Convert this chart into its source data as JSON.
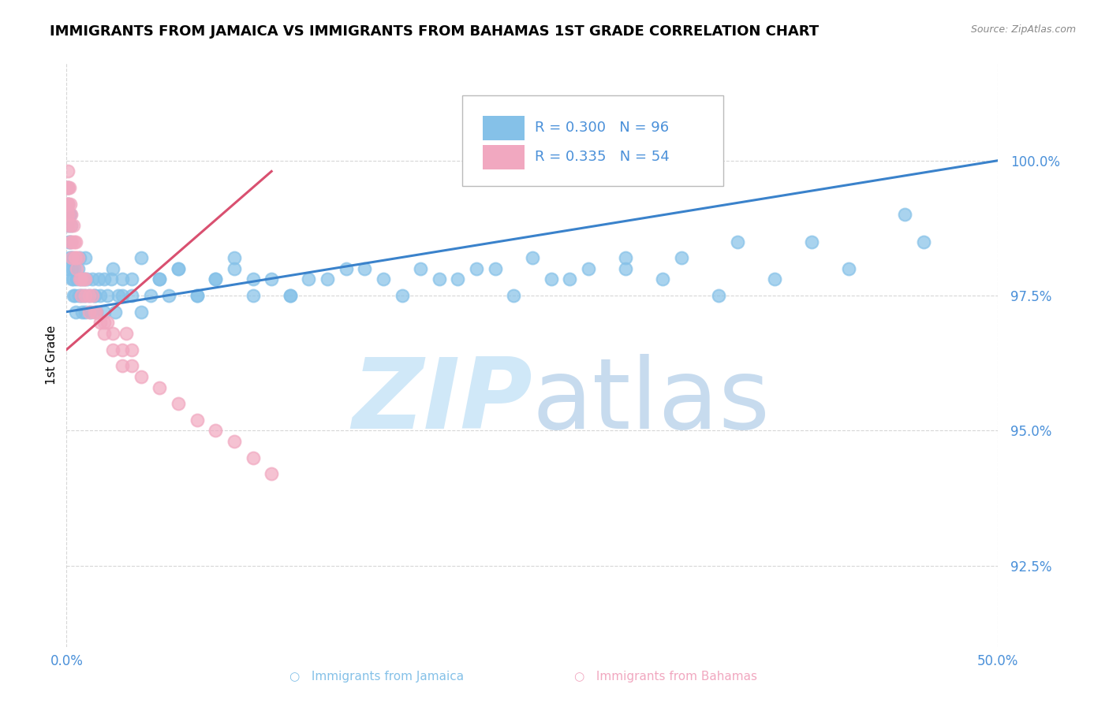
{
  "title": "IMMIGRANTS FROM JAMAICA VS IMMIGRANTS FROM BAHAMAS 1ST GRADE CORRELATION CHART",
  "source": "Source: ZipAtlas.com",
  "ylabel": "1st Grade",
  "yticks": [
    92.5,
    95.0,
    97.5,
    100.0
  ],
  "ytick_labels": [
    "92.5%",
    "95.0%",
    "97.5%",
    "100.0%"
  ],
  "xmin": 0.0,
  "xmax": 50.0,
  "ymin": 91.0,
  "ymax": 101.8,
  "jamaica_color": "#85C1E8",
  "bahamas_color": "#F1A8C0",
  "jamaica_R": 0.3,
  "jamaica_N": 96,
  "bahamas_R": 0.335,
  "bahamas_N": 54,
  "legend_R_color": "#4A90D9",
  "trend_blue": "#3A82CB",
  "trend_pink": "#D95070",
  "watermark_color": "#D0E8F8",
  "grid_color": "#CCCCCC",
  "title_fontsize": 13,
  "axis_label_color": "#4A90D9",
  "jamaica_scatter_x": [
    0.05,
    0.06,
    0.08,
    0.09,
    0.1,
    0.12,
    0.15,
    0.18,
    0.2,
    0.22,
    0.25,
    0.28,
    0.3,
    0.32,
    0.35,
    0.38,
    0.4,
    0.45,
    0.5,
    0.55,
    0.6,
    0.65,
    0.7,
    0.75,
    0.8,
    0.85,
    0.9,
    0.95,
    1.0,
    1.1,
    1.2,
    1.3,
    1.4,
    1.5,
    1.6,
    1.7,
    1.8,
    2.0,
    2.2,
    2.4,
    2.6,
    2.8,
    3.0,
    3.5,
    4.0,
    4.5,
    5.0,
    5.5,
    6.0,
    7.0,
    8.0,
    9.0,
    10.0,
    11.0,
    12.0,
    13.0,
    15.0,
    17.0,
    19.0,
    21.0,
    23.0,
    25.0,
    27.0,
    30.0,
    33.0,
    36.0,
    40.0,
    45.0,
    1.0,
    1.5,
    2.0,
    2.5,
    3.0,
    3.5,
    4.0,
    5.0,
    6.0,
    7.0,
    8.0,
    9.0,
    10.0,
    12.0,
    14.0,
    16.0,
    18.0,
    20.0,
    22.0,
    24.0,
    26.0,
    28.0,
    30.0,
    32.0,
    35.0,
    38.0,
    42.0,
    46.0
  ],
  "jamaica_scatter_y": [
    98.0,
    99.2,
    99.5,
    98.8,
    99.0,
    98.5,
    98.2,
    99.0,
    98.5,
    98.8,
    98.2,
    98.0,
    97.8,
    98.2,
    97.5,
    97.8,
    98.0,
    97.5,
    97.2,
    97.8,
    98.0,
    97.5,
    98.2,
    97.8,
    97.5,
    97.2,
    97.8,
    97.5,
    97.2,
    97.8,
    97.5,
    97.2,
    97.8,
    97.5,
    97.2,
    97.8,
    97.5,
    97.2,
    97.5,
    97.8,
    97.2,
    97.5,
    97.8,
    97.5,
    97.2,
    97.5,
    97.8,
    97.5,
    98.0,
    97.5,
    97.8,
    98.0,
    97.5,
    97.8,
    97.5,
    97.8,
    98.0,
    97.8,
    98.0,
    97.8,
    98.0,
    98.2,
    97.8,
    98.0,
    98.2,
    98.5,
    98.5,
    99.0,
    98.2,
    97.5,
    97.8,
    98.0,
    97.5,
    97.8,
    98.2,
    97.8,
    98.0,
    97.5,
    97.8,
    98.2,
    97.8,
    97.5,
    97.8,
    98.0,
    97.5,
    97.8,
    98.0,
    97.5,
    97.8,
    98.0,
    98.2,
    97.8,
    97.5,
    97.8,
    98.0,
    98.5
  ],
  "bahamas_scatter_x": [
    0.02,
    0.03,
    0.04,
    0.05,
    0.06,
    0.07,
    0.08,
    0.09,
    0.1,
    0.12,
    0.15,
    0.18,
    0.2,
    0.22,
    0.25,
    0.28,
    0.3,
    0.35,
    0.4,
    0.45,
    0.5,
    0.55,
    0.6,
    0.7,
    0.8,
    0.9,
    1.0,
    1.2,
    1.4,
    1.6,
    1.8,
    2.0,
    2.5,
    3.0,
    3.5,
    4.0,
    5.0,
    6.0,
    7.0,
    8.0,
    9.0,
    10.0,
    11.0,
    1.0,
    1.5,
    2.0,
    2.5,
    3.0,
    3.5,
    0.5,
    0.8,
    1.2,
    2.2,
    3.2
  ],
  "bahamas_scatter_y": [
    99.5,
    99.2,
    99.0,
    99.5,
    99.2,
    99.8,
    99.5,
    99.2,
    99.0,
    98.8,
    99.5,
    98.5,
    99.2,
    98.8,
    99.0,
    98.5,
    98.2,
    98.8,
    98.5,
    98.2,
    98.5,
    98.0,
    98.2,
    97.8,
    97.5,
    97.8,
    97.5,
    97.2,
    97.5,
    97.2,
    97.0,
    96.8,
    96.5,
    96.2,
    96.5,
    96.0,
    95.8,
    95.5,
    95.2,
    95.0,
    94.8,
    94.5,
    94.2,
    97.8,
    97.2,
    97.0,
    96.8,
    96.5,
    96.2,
    98.2,
    97.8,
    97.5,
    97.0,
    96.8
  ],
  "jamaica_trend_x0": 0.0,
  "jamaica_trend_x1": 50.0,
  "jamaica_trend_y0": 97.2,
  "jamaica_trend_y1": 100.0,
  "bahamas_trend_x0": 0.0,
  "bahamas_trend_x1": 11.0,
  "bahamas_trend_y0": 96.5,
  "bahamas_trend_y1": 99.8
}
